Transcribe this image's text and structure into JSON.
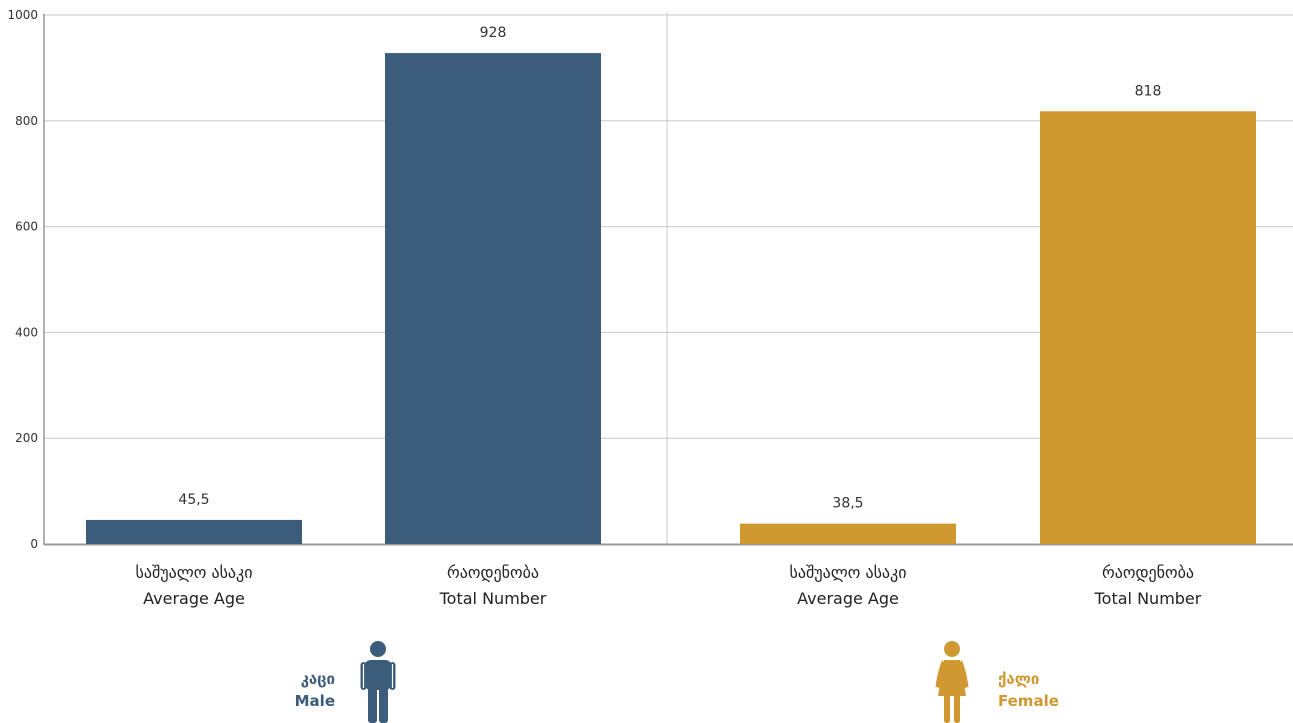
{
  "chart_data": {
    "type": "bar",
    "ylim": [
      0,
      1000
    ],
    "yticks": [
      "0",
      "200",
      "400",
      "600",
      "800",
      "1000"
    ],
    "grid": true,
    "groups": [
      {
        "group": "male",
        "color": "#3b5c7a",
        "legend_ka": "კაცი",
        "legend_en": "Male",
        "icon": "male-person-icon",
        "bars": [
          {
            "label_ka": "საშუალო ასაკი",
            "label_en": "Average Age",
            "value": 45.5,
            "display": "45,5"
          },
          {
            "label_ka": "რაოდენობა",
            "label_en": "Total Number",
            "value": 928,
            "display": "928"
          }
        ]
      },
      {
        "group": "female",
        "color": "#d09830",
        "legend_ka": "ქალი",
        "legend_en": "Female",
        "icon": "female-person-icon",
        "bars": [
          {
            "label_ka": "საშუალო ასაკი",
            "label_en": "Average Age",
            "value": 38.5,
            "display": "38,5"
          },
          {
            "label_ka": "რაოდენობა",
            "label_en": "Total Number",
            "value": 818,
            "display": "818"
          }
        ]
      }
    ]
  }
}
